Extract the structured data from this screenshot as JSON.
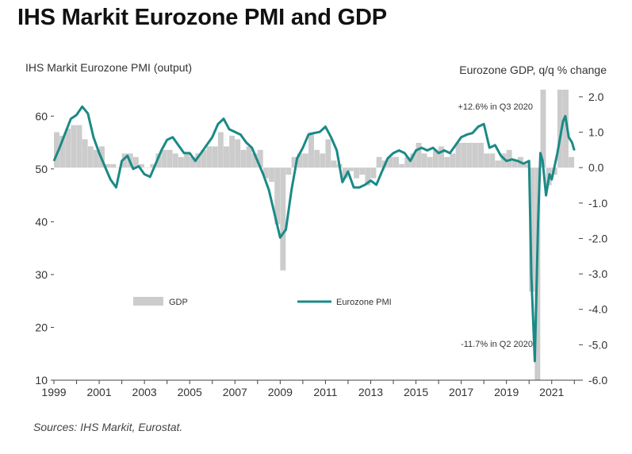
{
  "title": "IHS Markit Eurozone PMI and GDP",
  "source": "Sources: IHS Markit, Eurostat.",
  "chart_data": {
    "type": "bar+line",
    "title": "IHS Markit Eurozone PMI and GDP",
    "ylabel_left": "IHS Markit Eurozone PMI (output)",
    "ylabel_right": "Eurozone GDP, q/q % change",
    "ylim_left": [
      10,
      65
    ],
    "ylim_right": [
      -6.0,
      2.2
    ],
    "left_ticks": [
      "10",
      "20",
      "30",
      "40",
      "50",
      "60"
    ],
    "right_ticks": [
      "-6.0",
      "-5.0",
      "-4.0",
      "-3.0",
      "-2.0",
      "-1.0",
      "0.0",
      "1.0",
      "2.0"
    ],
    "x_ticks": [
      "1999",
      "2001",
      "2003",
      "2005",
      "2007",
      "2009",
      "2011",
      "2013",
      "2015",
      "2017",
      "2019",
      "2021"
    ],
    "xlim": [
      1999.0,
      2022.2
    ],
    "legend": [
      {
        "key": "gdp",
        "label": "GDP",
        "color": "#cccccc"
      },
      {
        "key": "pmi",
        "label": "Eurozone PMI",
        "color": "#1a8a86"
      }
    ],
    "annotations": [
      {
        "text": "+12.6% in Q3 2020"
      },
      {
        "text": "-11.7% in Q2 2020"
      }
    ],
    "gdp": {
      "name": "GDP",
      "x": [
        1999.0,
        1999.25,
        1999.5,
        1999.75,
        2000.0,
        2000.25,
        2000.5,
        2000.75,
        2001.0,
        2001.25,
        2001.5,
        2001.75,
        2002.0,
        2002.25,
        2002.5,
        2002.75,
        2003.0,
        2003.25,
        2003.5,
        2003.75,
        2004.0,
        2004.25,
        2004.5,
        2004.75,
        2005.0,
        2005.25,
        2005.5,
        2005.75,
        2006.0,
        2006.25,
        2006.5,
        2006.75,
        2007.0,
        2007.25,
        2007.5,
        2007.75,
        2008.0,
        2008.25,
        2008.5,
        2008.75,
        2009.0,
        2009.25,
        2009.5,
        2009.75,
        2010.0,
        2010.25,
        2010.5,
        2010.75,
        2011.0,
        2011.25,
        2011.5,
        2011.75,
        2012.0,
        2012.25,
        2012.5,
        2012.75,
        2013.0,
        2013.25,
        2013.5,
        2013.75,
        2014.0,
        2014.25,
        2014.5,
        2014.75,
        2015.0,
        2015.25,
        2015.5,
        2015.75,
        2016.0,
        2016.25,
        2016.5,
        2016.75,
        2017.0,
        2017.25,
        2017.5,
        2017.75,
        2018.0,
        2018.25,
        2018.5,
        2018.75,
        2019.0,
        2019.25,
        2019.5,
        2019.75,
        2020.0,
        2020.25,
        2020.5,
        2020.75,
        2021.0,
        2021.25,
        2021.5,
        2021.75
      ],
      "values": [
        1.0,
        0.9,
        1.1,
        1.2,
        1.2,
        0.8,
        0.6,
        0.5,
        0.6,
        0.1,
        0.1,
        0.0,
        0.4,
        0.4,
        0.3,
        0.1,
        0.0,
        0.1,
        0.4,
        0.5,
        0.5,
        0.4,
        0.3,
        0.4,
        0.3,
        0.4,
        0.5,
        0.6,
        0.6,
        1.0,
        0.6,
        0.9,
        0.8,
        0.5,
        0.6,
        0.4,
        0.5,
        -0.3,
        -0.4,
        -1.6,
        -2.9,
        -0.2,
        0.3,
        0.4,
        0.4,
        1.0,
        0.5,
        0.4,
        0.8,
        0.2,
        0.1,
        -0.3,
        -0.1,
        -0.3,
        -0.2,
        -0.5,
        -0.3,
        0.3,
        0.2,
        0.3,
        0.3,
        0.1,
        0.3,
        0.4,
        0.7,
        0.4,
        0.3,
        0.5,
        0.6,
        0.3,
        0.4,
        0.7,
        0.7,
        0.7,
        0.7,
        0.7,
        0.4,
        0.4,
        0.2,
        0.4,
        0.5,
        0.2,
        0.3,
        0.1,
        -3.5,
        -6.0,
        2.2,
        -0.5,
        -0.2,
        2.2,
        2.2,
        0.3
      ]
    },
    "pmi": {
      "name": "Eurozone PMI",
      "x": [
        1999.0,
        1999.25,
        1999.5,
        1999.75,
        2000.0,
        2000.25,
        2000.5,
        2000.75,
        2001.0,
        2001.25,
        2001.5,
        2001.75,
        2002.0,
        2002.25,
        2002.5,
        2002.75,
        2003.0,
        2003.25,
        2003.5,
        2003.75,
        2004.0,
        2004.25,
        2004.5,
        2004.75,
        2005.0,
        2005.25,
        2005.5,
        2005.75,
        2006.0,
        2006.25,
        2006.5,
        2006.75,
        2007.0,
        2007.25,
        2007.5,
        2007.75,
        2008.0,
        2008.25,
        2008.5,
        2008.75,
        2009.0,
        2009.25,
        2009.5,
        2009.75,
        2010.0,
        2010.25,
        2010.5,
        2010.75,
        2011.0,
        2011.25,
        2011.5,
        2011.75,
        2012.0,
        2012.25,
        2012.5,
        2012.75,
        2013.0,
        2013.25,
        2013.5,
        2013.75,
        2014.0,
        2014.25,
        2014.5,
        2014.75,
        2015.0,
        2015.25,
        2015.5,
        2015.75,
        2016.0,
        2016.25,
        2016.5,
        2016.75,
        2017.0,
        2017.25,
        2017.5,
        2017.75,
        2018.0,
        2018.25,
        2018.5,
        2018.75,
        2019.0,
        2019.25,
        2019.5,
        2019.75,
        2020.0,
        2020.1,
        2020.25,
        2020.4,
        2020.5,
        2020.6,
        2020.75,
        2020.9,
        2021.0,
        2021.25,
        2021.5,
        2021.6,
        2021.75,
        2021.9,
        2022.0
      ],
      "values": [
        51.5,
        54.0,
        56.8,
        59.5,
        60.2,
        61.8,
        60.5,
        56.0,
        53.0,
        50.5,
        48.0,
        46.5,
        51.5,
        52.5,
        50.0,
        50.5,
        49.0,
        48.5,
        51.0,
        53.5,
        55.5,
        56.0,
        54.5,
        53.0,
        53.0,
        51.5,
        53.0,
        54.5,
        56.0,
        58.5,
        59.5,
        57.5,
        57.0,
        56.5,
        55.0,
        54.0,
        51.5,
        49.0,
        46.0,
        41.5,
        37.0,
        38.5,
        46.0,
        52.0,
        54.0,
        56.5,
        56.8,
        57.0,
        58.0,
        56.0,
        53.5,
        47.5,
        49.5,
        46.5,
        46.5,
        47.0,
        47.8,
        47.0,
        49.5,
        52.0,
        53.0,
        53.5,
        53.0,
        51.5,
        53.5,
        54.0,
        53.5,
        54.0,
        53.0,
        53.5,
        53.0,
        54.5,
        56.0,
        56.5,
        56.8,
        58.0,
        58.5,
        54.0,
        54.5,
        52.5,
        51.5,
        51.8,
        51.5,
        51.0,
        51.5,
        29.7,
        13.6,
        40.0,
        53.0,
        51.5,
        45.0,
        49.0,
        48.0,
        53.0,
        59.0,
        60.0,
        56.0,
        55.0,
        53.5
      ]
    }
  }
}
